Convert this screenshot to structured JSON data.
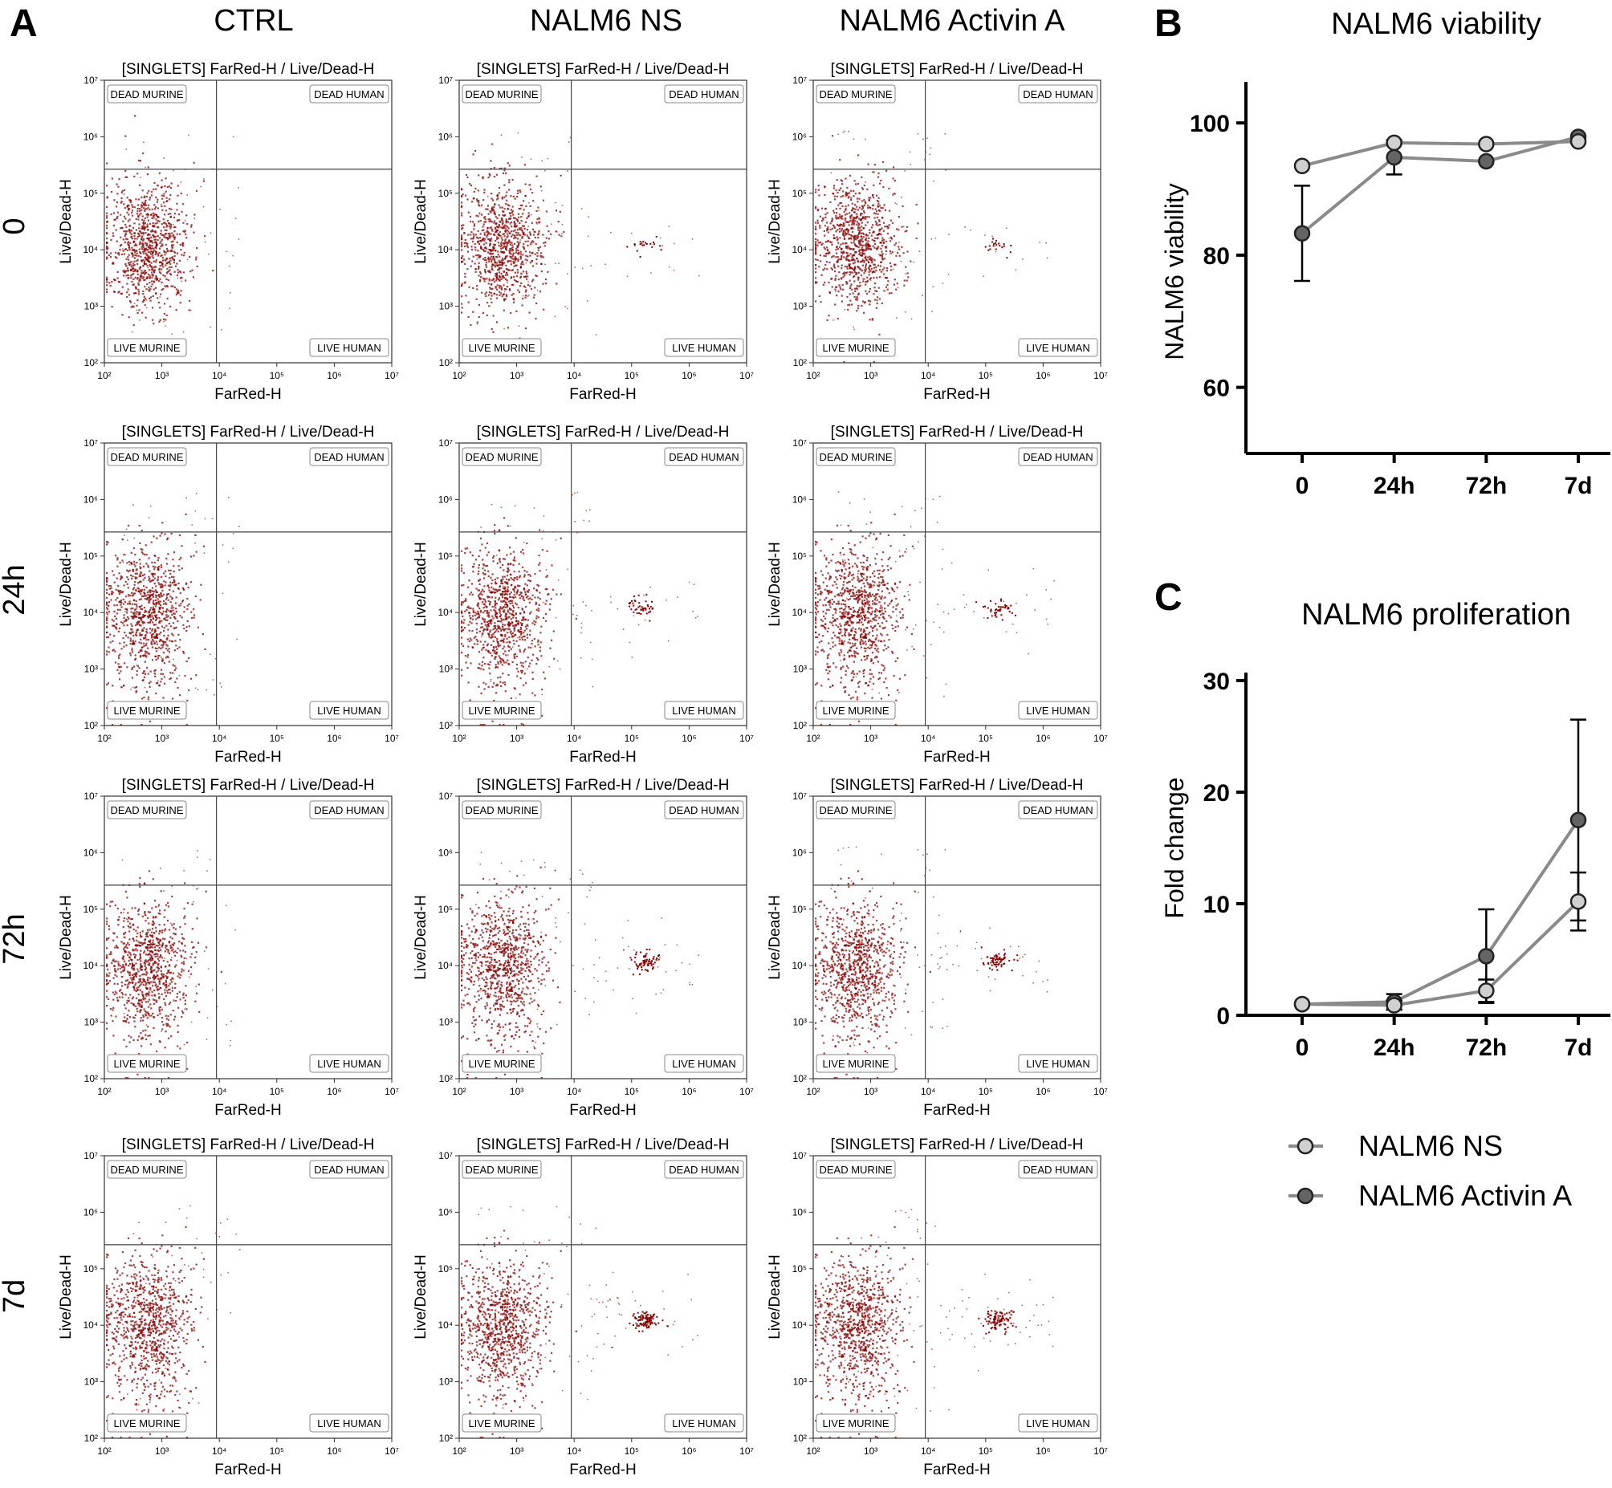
{
  "figure": {
    "panel_letters": [
      "A",
      "B",
      "C"
    ],
    "column_titles": [
      "CTRL",
      "NALM6 NS",
      "NALM6 Activin A"
    ],
    "row_labels": [
      "0",
      "24h",
      "72h",
      "7d"
    ]
  },
  "flow": {
    "plot_title": "[SINGLETS] FarRed-H / Live/Dead-H",
    "x_label": "FarRed-H",
    "y_label": "Live/Dead-H",
    "quadrants": {
      "top_left": "DEAD MURINE",
      "top_right": "DEAD HUMAN",
      "bottom_left": "LIVE MURINE",
      "bottom_right": "LIVE HUMAN"
    },
    "tick_labels": [
      "10²",
      "10³",
      "10⁴",
      "10⁵",
      "10⁶",
      "10⁷"
    ],
    "dot_color": "#8b0000"
  },
  "chart_data": [
    {
      "type": "line",
      "panel": "B",
      "title": "NALM6 viability",
      "ylabel": "NALM6 viability",
      "xlabel": "",
      "categories": [
        "0",
        "24h",
        "72h",
        "7d"
      ],
      "ylim": [
        50,
        105
      ],
      "yticks": [
        60,
        80,
        100
      ],
      "series": [
        {
          "name": "NALM6 NS",
          "values": [
            93.5,
            97.0,
            96.8,
            97.2
          ],
          "err": [
            0,
            0,
            0,
            0
          ],
          "color": "#d0d0d0"
        },
        {
          "name": "NALM6 Activin A",
          "values": [
            83.3,
            94.8,
            94.2,
            97.9
          ],
          "err": [
            7.2,
            2.6,
            0,
            0
          ],
          "color": "#646464"
        }
      ]
    },
    {
      "type": "line",
      "panel": "C",
      "title": "NALM6 proliferation",
      "ylabel": "Fold change",
      "xlabel": "",
      "categories": [
        "0",
        "24h",
        "72h",
        "7d"
      ],
      "ylim": [
        0,
        30
      ],
      "yticks": [
        0,
        10,
        20,
        30
      ],
      "series": [
        {
          "name": "NALM6 NS",
          "values": [
            1.0,
            0.9,
            2.2,
            10.2
          ],
          "err": [
            0,
            0.4,
            1.0,
            2.6
          ],
          "color": "#d0d0d0"
        },
        {
          "name": "NALM6 Activin A",
          "values": [
            1.0,
            1.2,
            5.3,
            17.5
          ],
          "err": [
            0,
            0.7,
            4.2,
            9.0
          ],
          "color": "#646464"
        }
      ]
    }
  ],
  "legend": {
    "items": [
      {
        "name": "NALM6 NS",
        "color": "#d0d0d0"
      },
      {
        "name": "NALM6 Activin A",
        "color": "#646464"
      }
    ]
  }
}
